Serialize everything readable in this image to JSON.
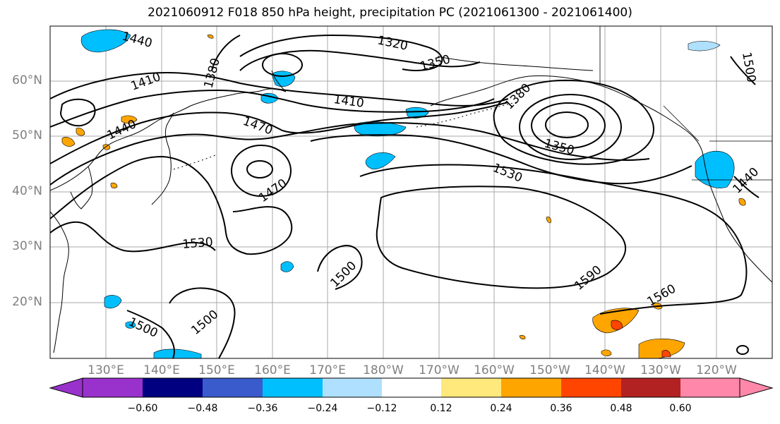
{
  "title": "2021060912 F018 850 hPa height, precipitation PC (2021061300 - 2021061400)",
  "lat_labels": [
    "60°N",
    "50°N",
    "40°N",
    "30°N",
    "20°N"
  ],
  "lon_labels": [
    "130°E",
    "140°E",
    "150°E",
    "160°E",
    "170°E",
    "180°W",
    "170°W",
    "160°W",
    "150°W",
    "140°W",
    "130°W",
    "120°W"
  ],
  "contour_labels": [
    "1440",
    "1320",
    "1350",
    "1410",
    "1380",
    "1410",
    "1470",
    "1440",
    "1470",
    "1380",
    "1350",
    "1530",
    "1530",
    "1500",
    "1500",
    "1500",
    "1590",
    "1560",
    "1500",
    "1440"
  ],
  "colorbar": {
    "ticks": [
      "−0.60",
      "−0.48",
      "−0.36",
      "−0.24",
      "−0.12",
      "0.12",
      "0.24",
      "0.36",
      "0.48",
      "0.60"
    ],
    "colors": [
      "#9932cc",
      "#000080",
      "#3a5bcc",
      "#00bfff",
      "#b0e0ff",
      "#ffffff",
      "#ffe87c",
      "#ffa500",
      "#ff4500",
      "#b22222",
      "#ff88aa"
    ]
  }
}
